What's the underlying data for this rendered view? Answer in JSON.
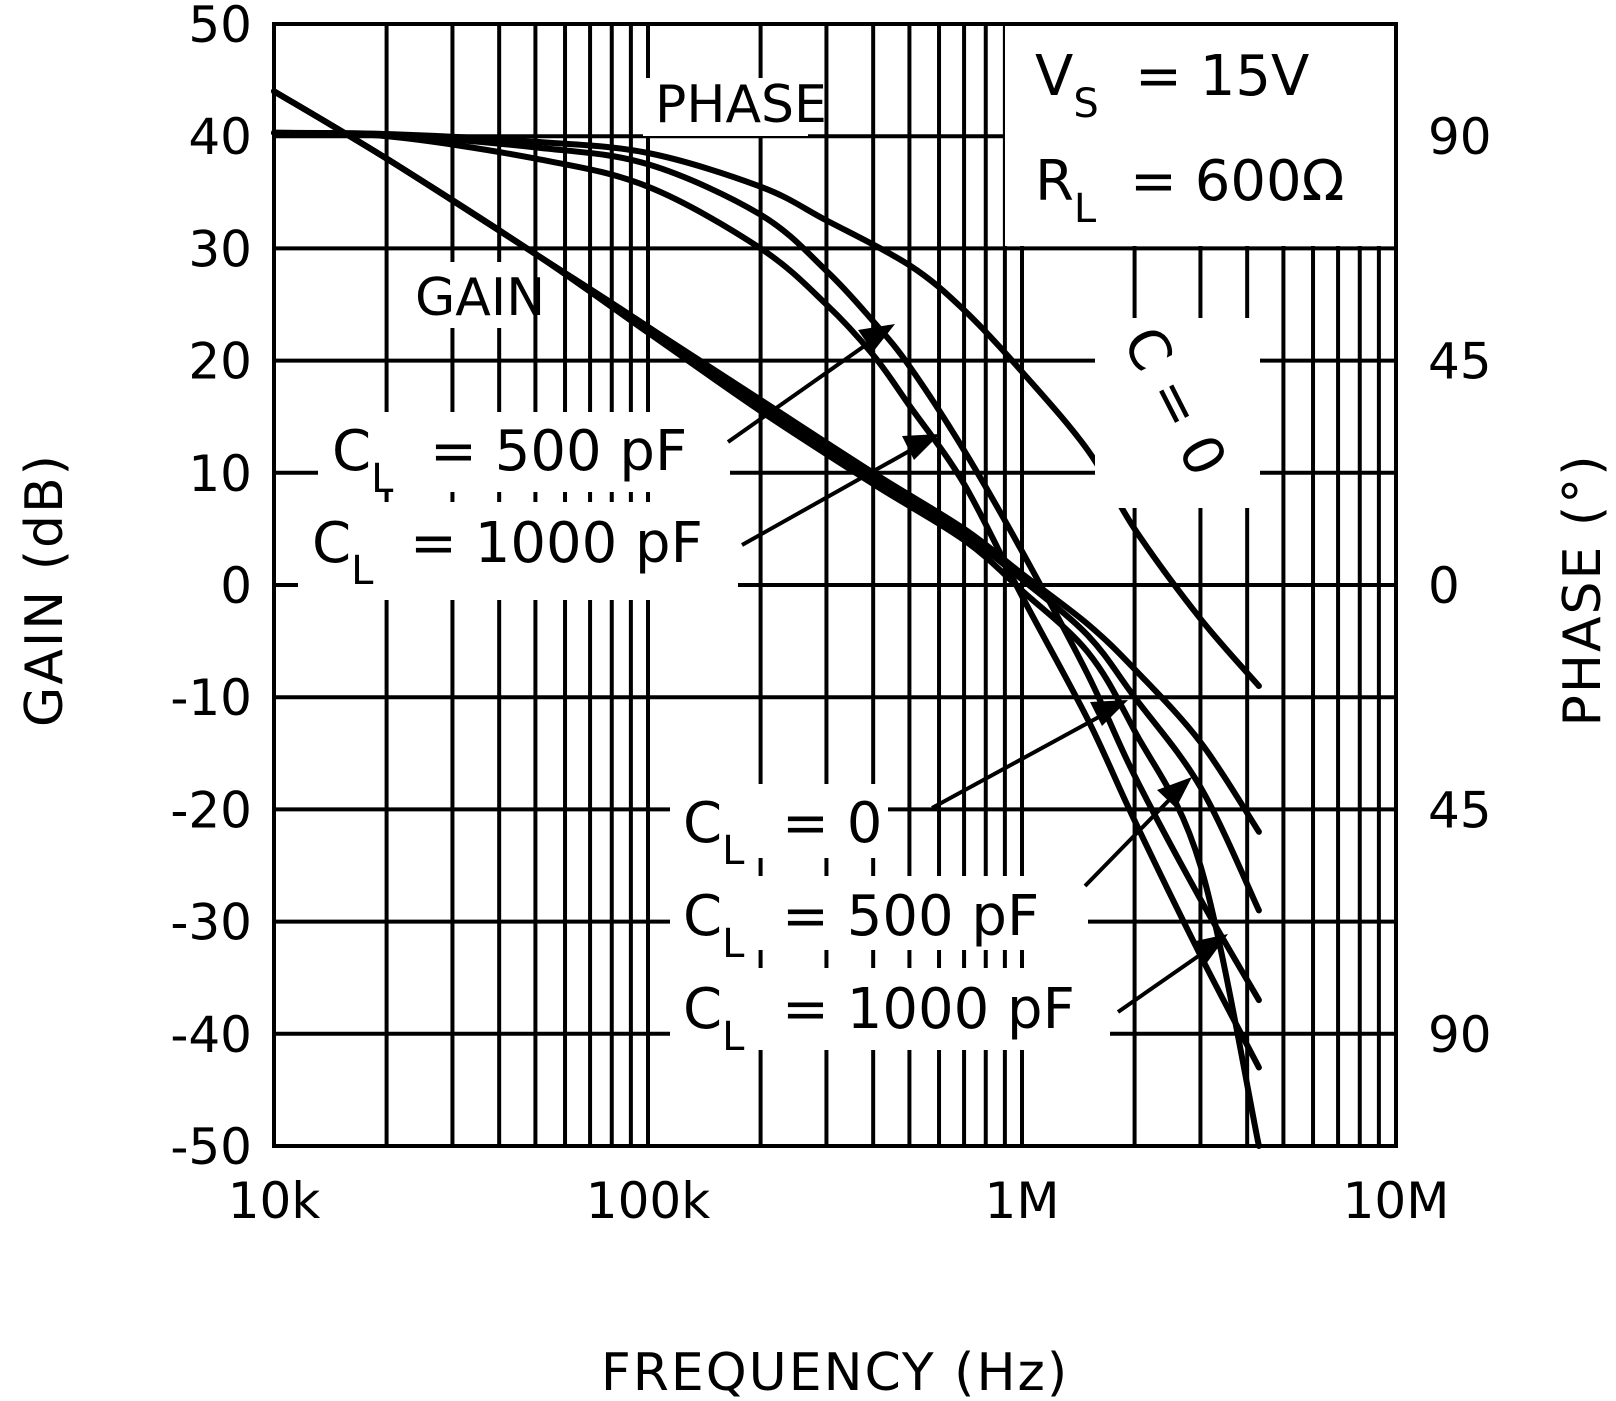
{
  "chart_data": {
    "type": "line",
    "x_scale": "log",
    "xlim": [
      10000,
      10000000
    ],
    "ylim": [
      -50,
      50
    ],
    "xlabel": "FREQUENCY (Hz)",
    "ylabel": "GAIN (dB)",
    "y2label": "PHASE (°)",
    "x_tick_labels": [
      "10k",
      "100k",
      "1M",
      "10M"
    ],
    "y_tick_labels": [
      "50",
      "40",
      "30",
      "20",
      "10",
      "0",
      "-10",
      "-20",
      "-30",
      "-40",
      "-50"
    ],
    "y2_tick_labels": [
      "90",
      "45",
      "0",
      "45",
      "90"
    ],
    "grid": true,
    "annotations": {
      "phase": "PHASE",
      "gain": "GAIN",
      "vs_main": "V",
      "vs_sub": "S",
      "vs_value": "= 15V",
      "rl_main": "R",
      "rl_sub": "L",
      "rl_value": "= 600Ω",
      "cl_zero_vertical": "C  = 0",
      "phase_cl500": "= 500 pF",
      "phase_cl1000": "= 1000 pF",
      "gain_cl0": "= 0",
      "gain_cl500": "= 500 pF",
      "gain_cl1000": "= 1000 pF",
      "c_main": "C",
      "c_sub": "L"
    },
    "series": [
      {
        "name": "PHASE C_L = 0",
        "x": [
          10000,
          20000,
          50000,
          100000,
          200000,
          300000,
          500000,
          700000,
          1000000,
          1500000,
          2000000,
          3000000,
          4300000
        ],
        "y": [
          40.3,
          40.2,
          39.5,
          38.5,
          35.5,
          32.5,
          28.5,
          24.5,
          19,
          12,
          5,
          -3,
          -9
        ]
      },
      {
        "name": "PHASE C_L = 500 pF",
        "x": [
          10000,
          20000,
          50000,
          100000,
          200000,
          300000,
          400000,
          500000,
          700000,
          1000000,
          1500000,
          2000000,
          3000000,
          4300000
        ],
        "y": [
          40.3,
          40.1,
          39,
          37.5,
          33,
          28,
          23.5,
          19.5,
          12,
          3,
          -8,
          -17,
          -28,
          -37
        ]
      },
      {
        "name": "PHASE C_L = 1000 pF",
        "x": [
          10000,
          20000,
          50000,
          100000,
          200000,
          300000,
          400000,
          500000,
          700000,
          1000000,
          1500000,
          2000000,
          3000000,
          4300000
        ],
        "y": [
          40.3,
          40,
          38,
          35.5,
          30,
          25,
          20.5,
          16,
          9,
          -1,
          -12,
          -21,
          -33,
          -43
        ]
      },
      {
        "name": "GAIN C_L = 0",
        "x": [
          10000,
          20000,
          50000,
          100000,
          200000,
          400000,
          700000,
          1000000,
          1500000,
          2000000,
          3000000,
          4300000
        ],
        "y": [
          44,
          38,
          29.5,
          23,
          16.5,
          10,
          5,
          1,
          -3.5,
          -7.5,
          -14,
          -22
        ]
      },
      {
        "name": "GAIN C_L = 500 pF",
        "x": [
          10000,
          20000,
          50000,
          100000,
          200000,
          400000,
          700000,
          1000000,
          1500000,
          2000000,
          3000000,
          4300000
        ],
        "y": [
          44,
          38,
          29.5,
          23,
          16,
          9.5,
          4.5,
          0.5,
          -4.5,
          -10,
          -18,
          -29
        ]
      },
      {
        "name": "GAIN C_L = 1000 pF",
        "x": [
          10000,
          20000,
          50000,
          100000,
          200000,
          400000,
          700000,
          1000000,
          1500000,
          2000000,
          3000000,
          4300000
        ],
        "y": [
          44,
          38,
          29.5,
          22.5,
          15.5,
          9,
          4,
          -0.5,
          -6,
          -13,
          -25,
          -50
        ]
      }
    ]
  }
}
